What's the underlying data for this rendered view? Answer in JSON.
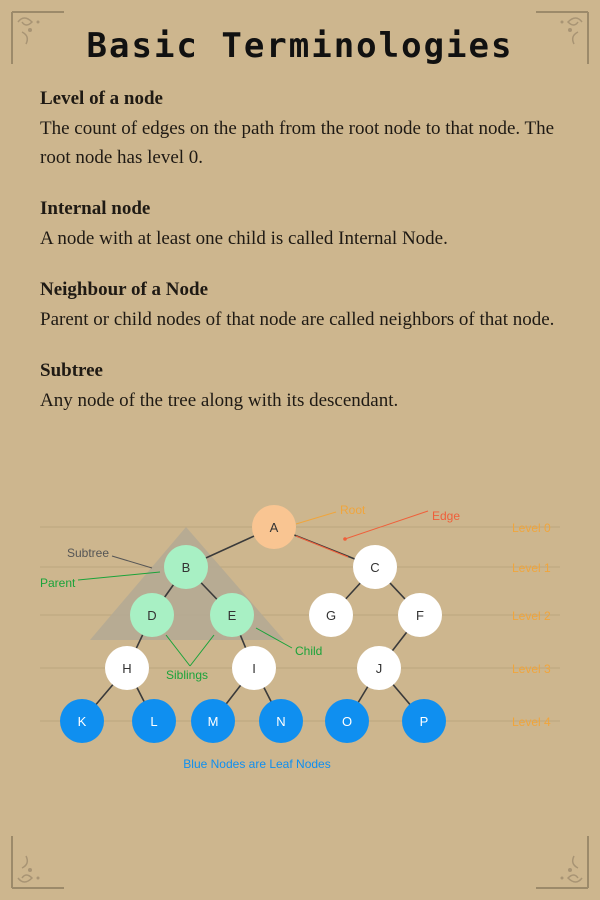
{
  "title": "Basic Terminologies",
  "terms": [
    {
      "heading": "Level of a node",
      "text": "The count of edges on the path from the root node to that node. The root node has level 0."
    },
    {
      "heading": "Internal node",
      "text": "A node with at least one child is called Internal Node."
    },
    {
      "heading": "Neighbour of a Node",
      "text": "Parent or child nodes of that node are called neighbors of that node."
    },
    {
      "heading": "Subtree",
      "text": "Any node of the tree along with its descendant."
    }
  ],
  "diagram": {
    "nodes": [
      "A",
      "B",
      "C",
      "D",
      "E",
      "G",
      "F",
      "H",
      "I",
      "J",
      "K",
      "L",
      "M",
      "N",
      "O",
      "P"
    ],
    "levels": [
      "Level 0",
      "Level 1",
      "Level 2",
      "Level 3",
      "Level 4"
    ],
    "annotations": {
      "root": "Root",
      "edge": "Edge",
      "subtree": "Subtree",
      "parent": "Parent",
      "child": "Child",
      "siblings": "Siblings"
    },
    "caption": "Blue Nodes are Leaf Nodes",
    "colors": {
      "root": "#f9c592",
      "internal_highlight": "#a8f0c4",
      "plain": "#ffffff",
      "leaf": "#0f8ff0",
      "level_label": "#f0a53c",
      "edge_label": "#ef5f3a",
      "green_label": "#1aa33a",
      "subtree_triangle": "#b3a994"
    }
  }
}
